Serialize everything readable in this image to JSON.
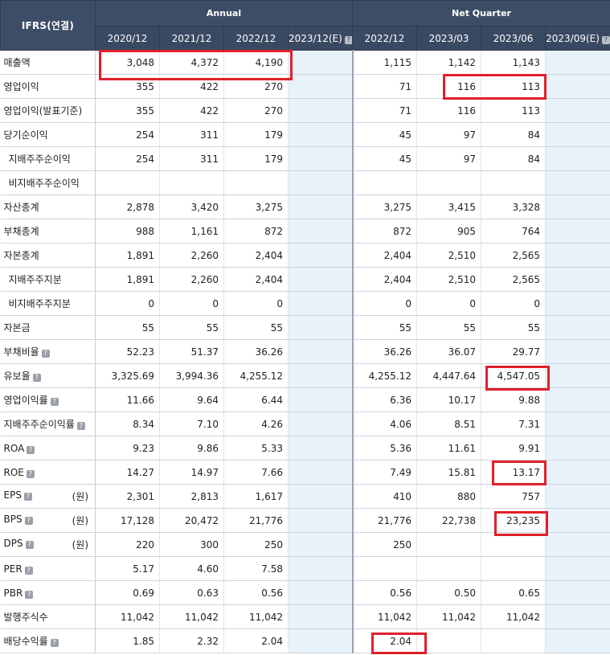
{
  "header": {
    "corner": "IFRS(연결)",
    "annual": "Annual",
    "quarter": "Net Quarter",
    "annual_cols": [
      "2020/12",
      "2021/12",
      "2022/12",
      "2023/12(E)"
    ],
    "quarter_cols": [
      "2022/12",
      "2023/03",
      "2023/06",
      "2023/09(E)"
    ]
  },
  "rows": [
    {
      "label": "매출액",
      "indent": false,
      "help": false,
      "unit": "",
      "annual": [
        "3,048",
        "4,372",
        "4,190",
        ""
      ],
      "quarter": [
        "1,115",
        "1,142",
        "1,143",
        ""
      ]
    },
    {
      "label": "영업이익",
      "indent": false,
      "help": false,
      "unit": "",
      "annual": [
        "355",
        "422",
        "270",
        ""
      ],
      "quarter": [
        "71",
        "116",
        "113",
        ""
      ]
    },
    {
      "label": "영업이익(발표기준)",
      "indent": false,
      "help": false,
      "unit": "",
      "annual": [
        "355",
        "422",
        "270",
        ""
      ],
      "quarter": [
        "71",
        "116",
        "113",
        ""
      ]
    },
    {
      "label": "당기순이익",
      "indent": false,
      "help": false,
      "unit": "",
      "annual": [
        "254",
        "311",
        "179",
        ""
      ],
      "quarter": [
        "45",
        "97",
        "84",
        ""
      ]
    },
    {
      "label": "지배주주순이익",
      "indent": true,
      "help": false,
      "unit": "",
      "annual": [
        "254",
        "311",
        "179",
        ""
      ],
      "quarter": [
        "45",
        "97",
        "84",
        ""
      ]
    },
    {
      "label": "비지배주주순이익",
      "indent": true,
      "help": false,
      "unit": "",
      "annual": [
        "",
        "",
        "",
        ""
      ],
      "quarter": [
        "",
        "",
        "",
        ""
      ]
    },
    {
      "label": "자산총계",
      "indent": false,
      "help": false,
      "unit": "",
      "annual": [
        "2,878",
        "3,420",
        "3,275",
        ""
      ],
      "quarter": [
        "3,275",
        "3,415",
        "3,328",
        ""
      ]
    },
    {
      "label": "부채총계",
      "indent": false,
      "help": false,
      "unit": "",
      "annual": [
        "988",
        "1,161",
        "872",
        ""
      ],
      "quarter": [
        "872",
        "905",
        "764",
        ""
      ]
    },
    {
      "label": "자본총계",
      "indent": false,
      "help": false,
      "unit": "",
      "annual": [
        "1,891",
        "2,260",
        "2,404",
        ""
      ],
      "quarter": [
        "2,404",
        "2,510",
        "2,565",
        ""
      ]
    },
    {
      "label": "지배주주지분",
      "indent": true,
      "help": false,
      "unit": "",
      "annual": [
        "1,891",
        "2,260",
        "2,404",
        ""
      ],
      "quarter": [
        "2,404",
        "2,510",
        "2,565",
        ""
      ]
    },
    {
      "label": "비지배주주지분",
      "indent": true,
      "help": false,
      "unit": "",
      "annual": [
        "0",
        "0",
        "0",
        ""
      ],
      "quarter": [
        "0",
        "0",
        "0",
        ""
      ]
    },
    {
      "label": "자본금",
      "indent": false,
      "help": false,
      "unit": "",
      "annual": [
        "55",
        "55",
        "55",
        ""
      ],
      "quarter": [
        "55",
        "55",
        "55",
        ""
      ]
    },
    {
      "label": "부채비율",
      "indent": false,
      "help": true,
      "unit": "",
      "annual": [
        "52.23",
        "51.37",
        "36.26",
        ""
      ],
      "quarter": [
        "36.26",
        "36.07",
        "29.77",
        ""
      ]
    },
    {
      "label": "유보율",
      "indent": false,
      "help": true,
      "unit": "",
      "annual": [
        "3,325.69",
        "3,994.36",
        "4,255.12",
        ""
      ],
      "quarter": [
        "4,255.12",
        "4,447.64",
        "4,547.05",
        ""
      ]
    },
    {
      "label": "영업이익률",
      "indent": false,
      "help": true,
      "unit": "",
      "annual": [
        "11.66",
        "9.64",
        "6.44",
        ""
      ],
      "quarter": [
        "6.36",
        "10.17",
        "9.88",
        ""
      ]
    },
    {
      "label": "지배주주순이익률",
      "indent": false,
      "help": true,
      "unit": "",
      "annual": [
        "8.34",
        "7.10",
        "4.26",
        ""
      ],
      "quarter": [
        "4.06",
        "8.51",
        "7.31",
        ""
      ]
    },
    {
      "label": "ROA",
      "indent": false,
      "help": true,
      "unit": "",
      "annual": [
        "9.23",
        "9.86",
        "5.33",
        ""
      ],
      "quarter": [
        "5.36",
        "11.61",
        "9.91",
        ""
      ]
    },
    {
      "label": "ROE",
      "indent": false,
      "help": true,
      "unit": "",
      "annual": [
        "14.27",
        "14.97",
        "7.66",
        ""
      ],
      "quarter": [
        "7.49",
        "15.81",
        "13.17",
        ""
      ]
    },
    {
      "label": "EPS",
      "indent": false,
      "help": true,
      "unit": "(원)",
      "annual": [
        "2,301",
        "2,813",
        "1,617",
        ""
      ],
      "quarter": [
        "410",
        "880",
        "757",
        ""
      ]
    },
    {
      "label": "BPS",
      "indent": false,
      "help": true,
      "unit": "(원)",
      "annual": [
        "17,128",
        "20,472",
        "21,776",
        ""
      ],
      "quarter": [
        "21,776",
        "22,738",
        "23,235",
        ""
      ]
    },
    {
      "label": "DPS",
      "indent": false,
      "help": true,
      "unit": "(원)",
      "annual": [
        "220",
        "300",
        "250",
        ""
      ],
      "quarter": [
        "250",
        "",
        "",
        ""
      ]
    },
    {
      "label": "PER",
      "indent": false,
      "help": true,
      "unit": "",
      "annual": [
        "5.17",
        "4.60",
        "7.58",
        ""
      ],
      "quarter": [
        "",
        "",
        "",
        ""
      ]
    },
    {
      "label": "PBR",
      "indent": false,
      "help": true,
      "unit": "",
      "annual": [
        "0.69",
        "0.63",
        "0.56",
        ""
      ],
      "quarter": [
        "0.56",
        "0.50",
        "0.65",
        ""
      ]
    },
    {
      "label": "발행주식수",
      "indent": false,
      "help": false,
      "unit": "",
      "annual": [
        "11,042",
        "11,042",
        "11,042",
        ""
      ],
      "quarter": [
        "11,042",
        "11,042",
        "11,042",
        ""
      ]
    },
    {
      "label": "배당수익률",
      "indent": false,
      "help": true,
      "unit": "",
      "annual": [
        "1.85",
        "2.32",
        "2.04",
        ""
      ],
      "quarter": [
        "2.04",
        "",
        "",
        ""
      ]
    }
  ],
  "help_glyph": "?",
  "highlight_color": "#e0202b"
}
